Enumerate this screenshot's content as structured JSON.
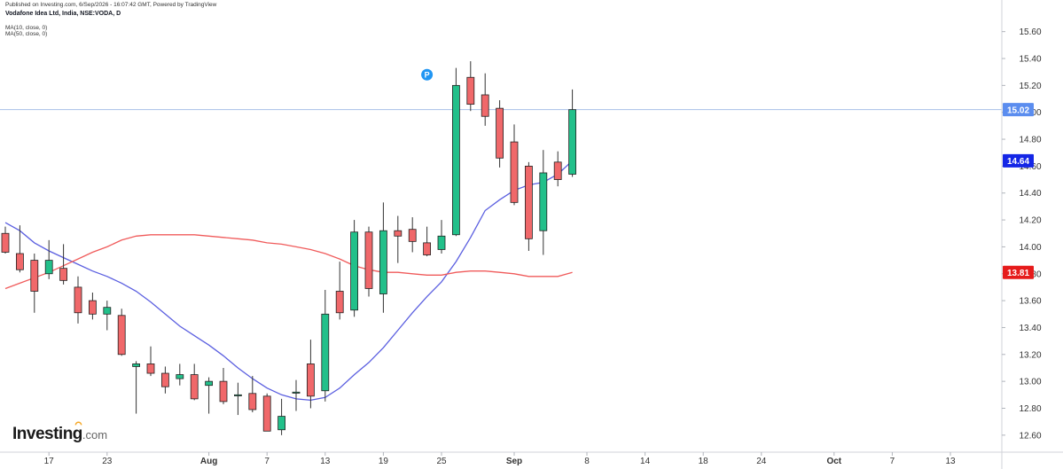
{
  "header": {
    "published": "Published on Investing.com, 6/Sep/2026 - 16:07:42 GMT, Powered by TradingView",
    "symbol": "Vodafone Idea Ltd, India, NSE:VODA, D",
    "ma_fast": "MA(10, close, 0)",
    "ma_slow": "MA(50, close, 0)"
  },
  "logo": {
    "text": "Investing",
    "suffix": ".com"
  },
  "colors": {
    "up": "#26a69a",
    "up_fill": "#22c08a",
    "down_fill": "#f0686a",
    "wick": "#333333",
    "ma_fast": "#5b5fe0",
    "ma_slow": "#f05b5b",
    "last_price_line": "#a8c0e8",
    "last_price_tag": "#5b8def",
    "ma_fast_tag": "#1426e6",
    "ma_slow_tag": "#e61b1b"
  },
  "chart_data": {
    "type": "candlestick",
    "ylim": [
      12.5,
      15.7
    ],
    "y_ticks": [
      "15.60",
      "15.40",
      "15.20",
      "15.00",
      "14.80",
      "14.60",
      "14.40",
      "14.20",
      "14.00",
      "13.80",
      "13.60",
      "13.40",
      "13.20",
      "13.00",
      "12.80",
      "12.60"
    ],
    "x_tick_labels": [
      {
        "label": "13",
        "day": -1
      },
      {
        "label": "17",
        "day": 3
      },
      {
        "label": "23",
        "day": 7
      },
      {
        "label": "Aug",
        "day": 14
      },
      {
        "label": "7",
        "day": 18
      },
      {
        "label": "13",
        "day": 22
      },
      {
        "label": "19",
        "day": 26
      },
      {
        "label": "25",
        "day": 30
      },
      {
        "label": "Sep",
        "day": 35
      },
      {
        "label": "8",
        "day": 40
      },
      {
        "label": "14",
        "day": 44
      },
      {
        "label": "18",
        "day": 48
      },
      {
        "label": "24",
        "day": 52
      },
      {
        "label": "Oct",
        "day": 57
      },
      {
        "label": "7",
        "day": 61
      },
      {
        "label": "13",
        "day": 65
      }
    ],
    "candles": [
      {
        "o": 14.1,
        "h": 14.15,
        "l": 13.95,
        "c": 13.96
      },
      {
        "o": 13.95,
        "h": 14.16,
        "l": 13.81,
        "c": 13.83
      },
      {
        "o": 13.9,
        "h": 13.95,
        "l": 13.51,
        "c": 13.67
      },
      {
        "o": 13.8,
        "h": 14.05,
        "l": 13.76,
        "c": 13.9
      },
      {
        "o": 13.84,
        "h": 14.02,
        "l": 13.72,
        "c": 13.75
      },
      {
        "o": 13.7,
        "h": 13.78,
        "l": 13.43,
        "c": 13.51
      },
      {
        "o": 13.6,
        "h": 13.66,
        "l": 13.46,
        "c": 13.5
      },
      {
        "o": 13.5,
        "h": 13.6,
        "l": 13.38,
        "c": 13.55
      },
      {
        "o": 13.49,
        "h": 13.54,
        "l": 13.19,
        "c": 13.2
      },
      {
        "o": 13.11,
        "h": 13.15,
        "l": 12.76,
        "c": 13.13
      },
      {
        "o": 13.13,
        "h": 13.26,
        "l": 13.04,
        "c": 13.06
      },
      {
        "o": 13.06,
        "h": 13.11,
        "l": 12.91,
        "c": 12.96
      },
      {
        "o": 13.02,
        "h": 13.13,
        "l": 12.97,
        "c": 13.05
      },
      {
        "o": 13.05,
        "h": 13.13,
        "l": 12.86,
        "c": 12.87
      },
      {
        "o": 12.97,
        "h": 13.03,
        "l": 12.76,
        "c": 13.0
      },
      {
        "o": 13.0,
        "h": 13.1,
        "l": 12.83,
        "c": 12.85
      },
      {
        "o": 12.9,
        "h": 12.99,
        "l": 12.75,
        "c": 12.9
      },
      {
        "o": 12.91,
        "h": 13.04,
        "l": 12.77,
        "c": 12.79
      },
      {
        "o": 12.89,
        "h": 12.91,
        "l": 12.63,
        "c": 12.63
      },
      {
        "o": 12.64,
        "h": 12.87,
        "l": 12.6,
        "c": 12.74
      },
      {
        "o": 12.92,
        "h": 13.01,
        "l": 12.78,
        "c": 12.92
      },
      {
        "o": 13.13,
        "h": 13.31,
        "l": 12.8,
        "c": 12.89
      },
      {
        "o": 12.93,
        "h": 13.68,
        "l": 12.85,
        "c": 13.5
      },
      {
        "o": 13.67,
        "h": 13.89,
        "l": 13.46,
        "c": 13.51
      },
      {
        "o": 13.53,
        "h": 14.2,
        "l": 13.48,
        "c": 14.11
      },
      {
        "o": 14.11,
        "h": 14.15,
        "l": 13.63,
        "c": 13.69
      },
      {
        "o": 13.65,
        "h": 14.33,
        "l": 13.51,
        "c": 14.12
      },
      {
        "o": 14.12,
        "h": 14.23,
        "l": 13.88,
        "c": 14.08
      },
      {
        "o": 14.13,
        "h": 14.22,
        "l": 13.96,
        "c": 14.04
      },
      {
        "o": 14.03,
        "h": 14.15,
        "l": 13.93,
        "c": 13.94
      },
      {
        "o": 13.98,
        "h": 14.2,
        "l": 13.95,
        "c": 14.08
      },
      {
        "o": 14.09,
        "h": 15.33,
        "l": 14.08,
        "c": 15.2
      },
      {
        "o": 15.26,
        "h": 15.38,
        "l": 15.01,
        "c": 15.06
      },
      {
        "o": 15.13,
        "h": 15.29,
        "l": 14.9,
        "c": 14.97
      },
      {
        "o": 15.03,
        "h": 15.09,
        "l": 14.59,
        "c": 14.66
      },
      {
        "o": 14.78,
        "h": 14.91,
        "l": 14.31,
        "c": 14.33
      },
      {
        "o": 14.6,
        "h": 14.63,
        "l": 13.97,
        "c": 14.06
      },
      {
        "o": 14.12,
        "h": 14.72,
        "l": 13.94,
        "c": 14.55
      },
      {
        "o": 14.63,
        "h": 14.71,
        "l": 14.45,
        "c": 14.5
      },
      {
        "o": 14.54,
        "h": 15.17,
        "l": 14.52,
        "c": 15.02
      }
    ],
    "series": [
      {
        "key": "ma_fast",
        "label": "MA(10, close, 0)",
        "values": [
          14.18,
          14.12,
          14.03,
          13.97,
          13.92,
          13.87,
          13.82,
          13.78,
          13.73,
          13.67,
          13.59,
          13.5,
          13.41,
          13.34,
          13.27,
          13.19,
          13.1,
          13.02,
          12.95,
          12.9,
          12.87,
          12.86,
          12.88,
          12.95,
          13.05,
          13.14,
          13.25,
          13.38,
          13.51,
          13.63,
          13.74,
          13.89,
          14.07,
          14.27,
          14.35,
          14.42,
          14.46,
          14.48,
          14.54,
          14.64
        ]
      },
      {
        "key": "ma_slow",
        "label": "MA(50, close, 0)",
        "values": [
          13.69,
          13.73,
          13.77,
          13.81,
          13.86,
          13.91,
          13.96,
          14.0,
          14.05,
          14.08,
          14.09,
          14.09,
          14.09,
          14.09,
          14.08,
          14.07,
          14.06,
          14.05,
          14.03,
          14.02,
          14.0,
          13.98,
          13.95,
          13.91,
          13.86,
          13.83,
          13.81,
          13.81,
          13.8,
          13.79,
          13.79,
          13.81,
          13.82,
          13.82,
          13.81,
          13.8,
          13.78,
          13.78,
          13.78,
          13.81
        ]
      }
    ],
    "last_price": {
      "label": "15.02",
      "value": 15.02
    },
    "ma_fast_last": {
      "label": "14.64",
      "value": 14.64
    },
    "ma_slow_last": {
      "label": "13.81",
      "value": 13.81
    },
    "event_marker": {
      "label": "P",
      "day": 29,
      "value": 15.28
    }
  }
}
